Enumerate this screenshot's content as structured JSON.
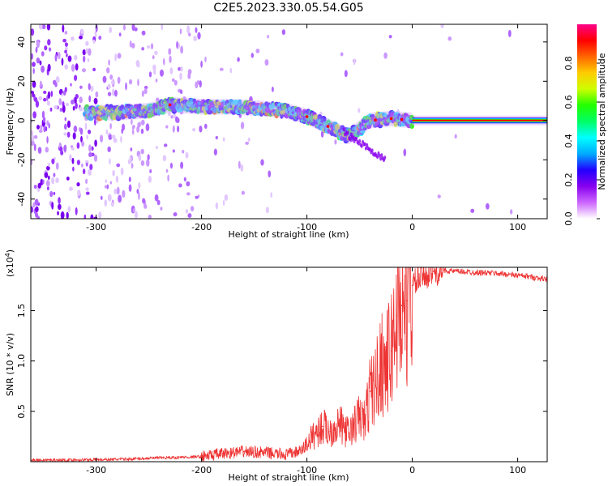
{
  "chart_data": [
    {
      "type": "heatmap",
      "title": "C2E5.2023.330.05.54.G05",
      "xlabel": "Height of straight line (km)",
      "ylabel": "Frequency (Hz)",
      "xlim": [
        -362,
        128
      ],
      "ylim": [
        -50,
        49
      ],
      "x_ticks": [
        -300,
        -200,
        -100,
        0,
        100
      ],
      "x_tick_labels": [
        "-300",
        "-200",
        "-100",
        "0",
        "100"
      ],
      "y_ticks": [
        -40,
        -20,
        0,
        20,
        40
      ],
      "y_tick_labels": [
        "-40",
        "-20",
        "0",
        "20",
        "40"
      ],
      "colorbar": {
        "label": "Normalized spectral amplitude",
        "range": [
          0.0,
          1.0
        ],
        "ticks": [
          0.0,
          0.2,
          0.4,
          0.6,
          0.8
        ],
        "tick_labels": [
          "0.0",
          "0.2",
          "0.4",
          "0.6",
          "0.8"
        ],
        "colors": [
          "#ffffff",
          "#cc66ff",
          "#8800ee",
          "#2200ff",
          "#00aaff",
          "#00ffff",
          "#00ff66",
          "#22ff00",
          "#ccff00",
          "#ffcc00",
          "#ff6600",
          "#ff0000",
          "#ff0088"
        ]
      },
      "ridge": {
        "x": [
          -300,
          -280,
          -250,
          -230,
          -200,
          -170,
          -140,
          -120,
          -100,
          -80,
          -60,
          -50,
          -40,
          -20,
          0,
          128
        ],
        "freq": [
          4,
          4,
          5,
          8,
          7,
          7,
          6,
          5,
          2,
          -3,
          -8,
          -4,
          0,
          1,
          0,
          0
        ]
      },
      "grid": false
    },
    {
      "type": "line",
      "xlabel": "Height of straight line (km)",
      "ylabel": "SNR (10 * v/v)",
      "yunit_label": "(x10",
      "yunit_exp": "4",
      "yunit_close": ")",
      "xlim": [
        -362,
        128
      ],
      "ylim": [
        0,
        19300
      ],
      "x_ticks": [
        -300,
        -200,
        -100,
        0,
        100
      ],
      "x_tick_labels": [
        "-300",
        "-200",
        "-100",
        "0",
        "100"
      ],
      "y_ticks": [
        5000,
        10000,
        15000
      ],
      "y_tick_labels": [
        "0.5",
        "1.0",
        "1.5"
      ],
      "series": [
        {
          "color": "#ee3333",
          "x": [
            -362,
            -330,
            -300,
            -270,
            -250,
            -230,
            -200,
            -180,
            -160,
            -140,
            -120,
            -105,
            -95,
            -85,
            -78,
            -70,
            -60,
            -50,
            -45,
            -40,
            -35,
            -30,
            -25,
            -20,
            -15,
            -10,
            -5,
            0,
            10,
            20,
            30,
            40,
            60,
            80,
            100,
            115,
            128
          ],
          "values": [
            150,
            170,
            200,
            250,
            350,
            400,
            500,
            800,
            1000,
            900,
            700,
            1100,
            2500,
            3500,
            3000,
            3800,
            2800,
            4500,
            4000,
            7000,
            7500,
            10000,
            9500,
            11000,
            14500,
            15500,
            16000,
            17500,
            18500,
            18900,
            19000,
            18900,
            18800,
            18700,
            18500,
            18300,
            18100
          ]
        }
      ],
      "grid": false
    }
  ]
}
